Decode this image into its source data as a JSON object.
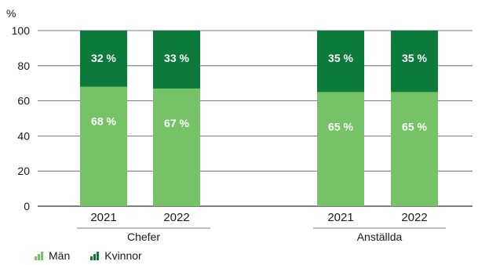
{
  "chart_data": {
    "type": "bar",
    "stacked": true,
    "ylabel": "%",
    "ylim": [
      0,
      100
    ],
    "yticks": [
      0,
      20,
      40,
      60,
      80,
      100
    ],
    "grid": true,
    "groups": [
      {
        "name": "Chefer",
        "categories": [
          "2021",
          "2022"
        ]
      },
      {
        "name": "Anställda",
        "categories": [
          "2021",
          "2022"
        ]
      }
    ],
    "series": [
      {
        "name": "Män",
        "color": "#76c267",
        "values": [
          68,
          67,
          65,
          65
        ],
        "labels": [
          "68 %",
          "67 %",
          "65 %",
          "65 %"
        ]
      },
      {
        "name": "Kvinnor",
        "color": "#0b7a3b",
        "values": [
          32,
          33,
          35,
          35
        ],
        "labels": [
          "32 %",
          "33 %",
          "35 %",
          "35 %"
        ]
      }
    ],
    "legend_position": "bottom-left"
  }
}
